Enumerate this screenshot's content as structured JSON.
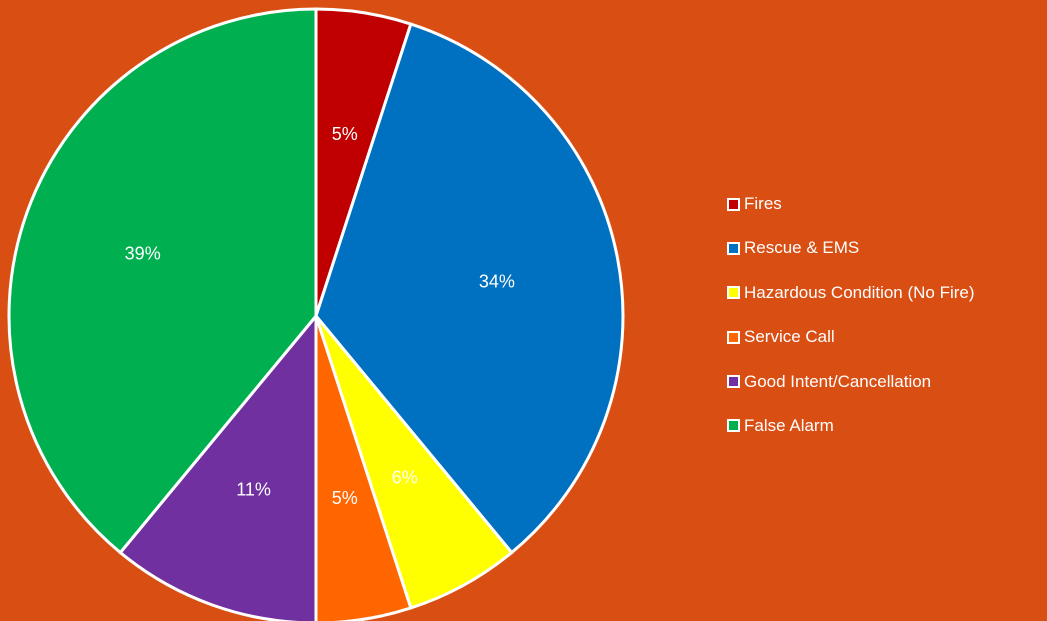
{
  "background_color": "#D94E13",
  "chart_data": {
    "type": "pie",
    "categories": [
      "Fires",
      "Rescue & EMS",
      "Hazardous Condition (No Fire)",
      "Service Call",
      "Good Intent/Cancellation",
      "False Alarm"
    ],
    "values": [
      5,
      34,
      6,
      5,
      11,
      39
    ],
    "data_labels": [
      "5%",
      "34%",
      "6%",
      "5%",
      "11%",
      "39%"
    ],
    "colors": [
      "#C00000",
      "#0070C0",
      "#FFFF00",
      "#FF6600",
      "#7030A0",
      "#00B050"
    ],
    "start_angle": "12 o'clock",
    "direction": "clockwise",
    "slice_border_color": "#FFFFFF",
    "legend_position": "right"
  }
}
